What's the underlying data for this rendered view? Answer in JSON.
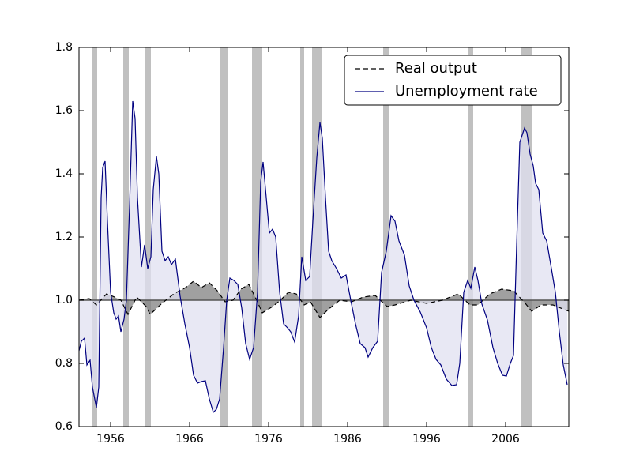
{
  "chart_data": {
    "type": "line",
    "xlim": [
      1952,
      2014
    ],
    "ylim": [
      0.6,
      1.8
    ],
    "xticks": [
      1956,
      1966,
      1976,
      1986,
      1996,
      2006
    ],
    "yticks": [
      0.6,
      0.8,
      {
        "value": 1,
        "label": "1.0"
      },
      1.2,
      1.4,
      1.6,
      1.8
    ],
    "fill_baseline": 1,
    "legend": "upper right",
    "recession_color": "#c0c0c0",
    "recessions": [
      [
        1953.6,
        1954.3
      ],
      [
        1957.6,
        1958.3
      ],
      [
        1960.3,
        1961.1
      ],
      [
        1969.9,
        1970.9
      ],
      [
        1973.9,
        1975.2
      ],
      [
        1980.0,
        1980.5
      ],
      [
        1981.5,
        1982.7
      ],
      [
        1990.5,
        1991.2
      ],
      [
        2001.2,
        2001.9
      ],
      [
        2007.9,
        2009.4
      ]
    ],
    "series": [
      {
        "name": "Real output",
        "color": "#000000",
        "dash": true,
        "fill": "#808080",
        "x": [
          1952,
          1953.3,
          1954.2,
          1955.5,
          1956.5,
          1957.3,
          1958.2,
          1959.3,
          1960.5,
          1961.0,
          1962.5,
          1964,
          1965.5,
          1966.5,
          1967.5,
          1968.5,
          1969.5,
          1970.5,
          1971.5,
          1972.5,
          1973.5,
          1974.5,
          1975.2,
          1976.5,
          1977.5,
          1978.5,
          1979.5,
          1980.5,
          1981.3,
          1982.5,
          1983.5,
          1985,
          1986.5,
          1988,
          1989.5,
          1991,
          1992,
          1994,
          1996,
          1998,
          2000,
          2001.5,
          2002.5,
          2004,
          2005.5,
          2007,
          2008.5,
          2009.3,
          2010.5,
          2012,
          2014
        ],
        "values": [
          1.0,
          1.005,
          0.985,
          1.02,
          1.01,
          1.0,
          0.955,
          1.01,
          0.98,
          0.955,
          0.99,
          1.02,
          1.04,
          1.06,
          1.04,
          1.055,
          1.03,
          0.995,
          1.0,
          1.035,
          1.05,
          1.0,
          0.96,
          0.98,
          1.0,
          1.025,
          1.02,
          0.985,
          0.995,
          0.945,
          0.97,
          1.0,
          0.995,
          1.01,
          1.015,
          0.98,
          0.985,
          1.0,
          0.99,
          1.0,
          1.02,
          0.985,
          0.985,
          1.02,
          1.035,
          1.03,
          0.99,
          0.965,
          0.985,
          0.985,
          0.965
        ]
      },
      {
        "name": "Unemployment rate",
        "color": "#000080",
        "dash": false,
        "fill": "#e0e0f0",
        "x": [
          1952.0,
          1952.3,
          1952.7,
          1953.0,
          1953.4,
          1953.7,
          1954.2,
          1954.5,
          1954.8,
          1955.0,
          1955.3,
          1955.6,
          1956.0,
          1956.4,
          1956.7,
          1957.0,
          1957.3,
          1957.7,
          1958.0,
          1958.4,
          1958.8,
          1959.1,
          1959.4,
          1959.9,
          1960.3,
          1960.7,
          1961.1,
          1961.4,
          1961.8,
          1962.1,
          1962.5,
          1962.9,
          1963.3,
          1963.7,
          1964.2,
          1964.8,
          1965.4,
          1966.0,
          1966.5,
          1967.0,
          1967.5,
          1968.0,
          1968.5,
          1969.0,
          1969.4,
          1969.8,
          1970.3,
          1970.7,
          1971.1,
          1971.6,
          1972.1,
          1972.6,
          1973.1,
          1973.6,
          1974.1,
          1974.6,
          1975.0,
          1975.3,
          1975.7,
          1976.1,
          1976.5,
          1976.9,
          1977.4,
          1977.9,
          1978.4,
          1978.8,
          1979.3,
          1979.8,
          1980.2,
          1980.7,
          1981.2,
          1981.6,
          1982.1,
          1982.5,
          1982.8,
          1983.2,
          1983.6,
          1984.0,
          1984.6,
          1985.2,
          1985.8,
          1986.4,
          1987.0,
          1987.6,
          1988.2,
          1988.6,
          1989.2,
          1989.8,
          1990.3,
          1990.9,
          1991.5,
          1992.0,
          1992.5,
          1993.2,
          1993.8,
          1994.4,
          1995.2,
          1996.0,
          1996.6,
          1997.2,
          1997.8,
          1998.5,
          1999.2,
          1999.8,
          2000.2,
          2000.7,
          2001.2,
          2001.6,
          2002.1,
          2002.5,
          2003.0,
          2003.7,
          2004.4,
          2005.0,
          2005.6,
          2006.1,
          2006.6,
          2007.0,
          2007.4,
          2007.8,
          2008.4,
          2008.7,
          2009.1,
          2009.5,
          2009.8,
          2010.2,
          2010.7,
          2011.2,
          2011.8,
          2012.3,
          2012.8,
          2013.3,
          2013.8
        ],
        "values": [
          0.84,
          0.87,
          0.88,
          0.795,
          0.81,
          0.725,
          0.66,
          0.725,
          1.325,
          1.42,
          1.44,
          1.25,
          1.025,
          0.96,
          0.94,
          0.95,
          0.9,
          0.94,
          1.0,
          1.3,
          1.63,
          1.575,
          1.325,
          1.105,
          1.175,
          1.1,
          1.1375,
          1.35,
          1.455,
          1.4,
          1.155,
          1.125,
          1.1375,
          1.1125,
          1.13,
          1.0125,
          0.925,
          0.85,
          0.7625,
          0.7375,
          0.7425,
          0.745,
          0.6875,
          0.645,
          0.655,
          0.6875,
          0.85,
          1.0,
          1.07,
          1.0625,
          1.05,
          0.975,
          0.8625,
          0.8125,
          0.85,
          1.025,
          1.375,
          1.4375,
          1.325,
          1.2125,
          1.225,
          1.2,
          1.025,
          0.925,
          0.9125,
          0.9,
          0.8675,
          0.95,
          1.1375,
          1.0625,
          1.075,
          1.25,
          1.45,
          1.5625,
          1.5125,
          1.325,
          1.155,
          1.125,
          1.1,
          1.07,
          1.08,
          1.0,
          0.925,
          0.8625,
          0.85,
          0.82,
          0.85,
          0.87,
          1.0875,
          1.155,
          1.2675,
          1.25,
          1.1875,
          1.1425,
          1.045,
          1.0,
          0.9625,
          0.9125,
          0.85,
          0.8125,
          0.795,
          0.75,
          0.73,
          0.7325,
          0.8,
          1.025,
          1.0625,
          1.0375,
          1.105,
          1.0625,
          0.9875,
          0.9375,
          0.85,
          0.8,
          0.7625,
          0.76,
          0.8,
          0.825,
          1.175,
          1.5,
          1.545,
          1.53,
          1.4625,
          1.425,
          1.37,
          1.35,
          1.2125,
          1.1875,
          1.1,
          1.025,
          0.9,
          0.795,
          0.7325
        ]
      }
    ]
  }
}
